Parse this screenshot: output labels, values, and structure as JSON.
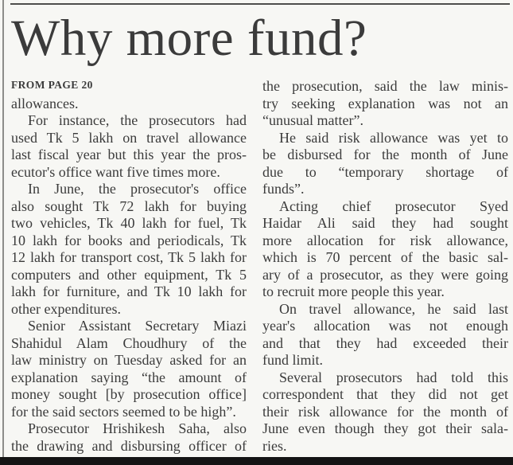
{
  "theme": {
    "bg": "#f7f7f4",
    "ink": "#3b3b3b",
    "rule": "#4e4e4c",
    "edge": "#8d8d8a",
    "bar": "#141414"
  },
  "article": {
    "headline": "Why more fund?",
    "kicker": "FROM PAGE 20",
    "columns": [
      {
        "paragraphs": [
          {
            "indent": false,
            "continues": false,
            "lines": [
              "allowances."
            ]
          },
          {
            "indent": true,
            "continues": false,
            "lines": [
              "For instance, the prosecutors had",
              "used Tk 5 lakh on travel allowance",
              "last fiscal year but this year the pros-",
              "ecutor's office want five times more."
            ]
          },
          {
            "indent": true,
            "continues": false,
            "lines": [
              "In June, the prosecutor's office",
              "also sought Tk 72 lakh for buying",
              "two vehicles, Tk 40 lakh for fuel, Tk",
              "10 lakh for books and periodicals, Tk",
              "12 lakh for transport cost, Tk 5 lakh for",
              "computers and other equipment, Tk 5",
              "lakh for furniture, and Tk 10 lakh for",
              "other expenditures."
            ]
          },
          {
            "indent": true,
            "continues": false,
            "lines": [
              "Senior Assistant Secretary Miazi",
              "Shahidul Alam Choudhury of the",
              "law ministry on Tuesday asked for an",
              "explanation saying “the amount of",
              "money sought [by prosecution office]",
              "for the said sectors seemed to be high”."
            ]
          },
          {
            "indent": true,
            "continues": true,
            "lines": [
              "Prosecutor Hrishikesh Saha, also",
              "the drawing and disbursing officer of"
            ]
          }
        ]
      },
      {
        "paragraphs": [
          {
            "indent": false,
            "continues": false,
            "lines": [
              "the prosecution, said the law minis-",
              "try seeking explanation was not an",
              "“unusual matter”."
            ]
          },
          {
            "indent": true,
            "continues": false,
            "lines": [
              "He said risk allowance was yet to",
              "be disbursed for the month of June",
              "due to “temporary shortage of",
              "funds”."
            ]
          },
          {
            "indent": true,
            "continues": false,
            "lines": [
              "Acting chief prosecutor Syed",
              "Haidar Ali said they had sought",
              "more allocation for risk allowance,",
              "which is 70 percent of the basic sal-",
              "ary of a prosecutor, as they were going",
              "to recruit more people this year."
            ]
          },
          {
            "indent": true,
            "continues": false,
            "lines": [
              "On travel allowance, he said last",
              "year's allocation was not enough",
              "and that they had exceeded their",
              "fund limit."
            ]
          },
          {
            "indent": true,
            "continues": false,
            "lines": [
              "Several prosecutors had told this",
              "correspondent that they did not get",
              "their risk allowance for the month of",
              "June even though they got their sala-",
              "ries."
            ]
          }
        ]
      }
    ]
  }
}
